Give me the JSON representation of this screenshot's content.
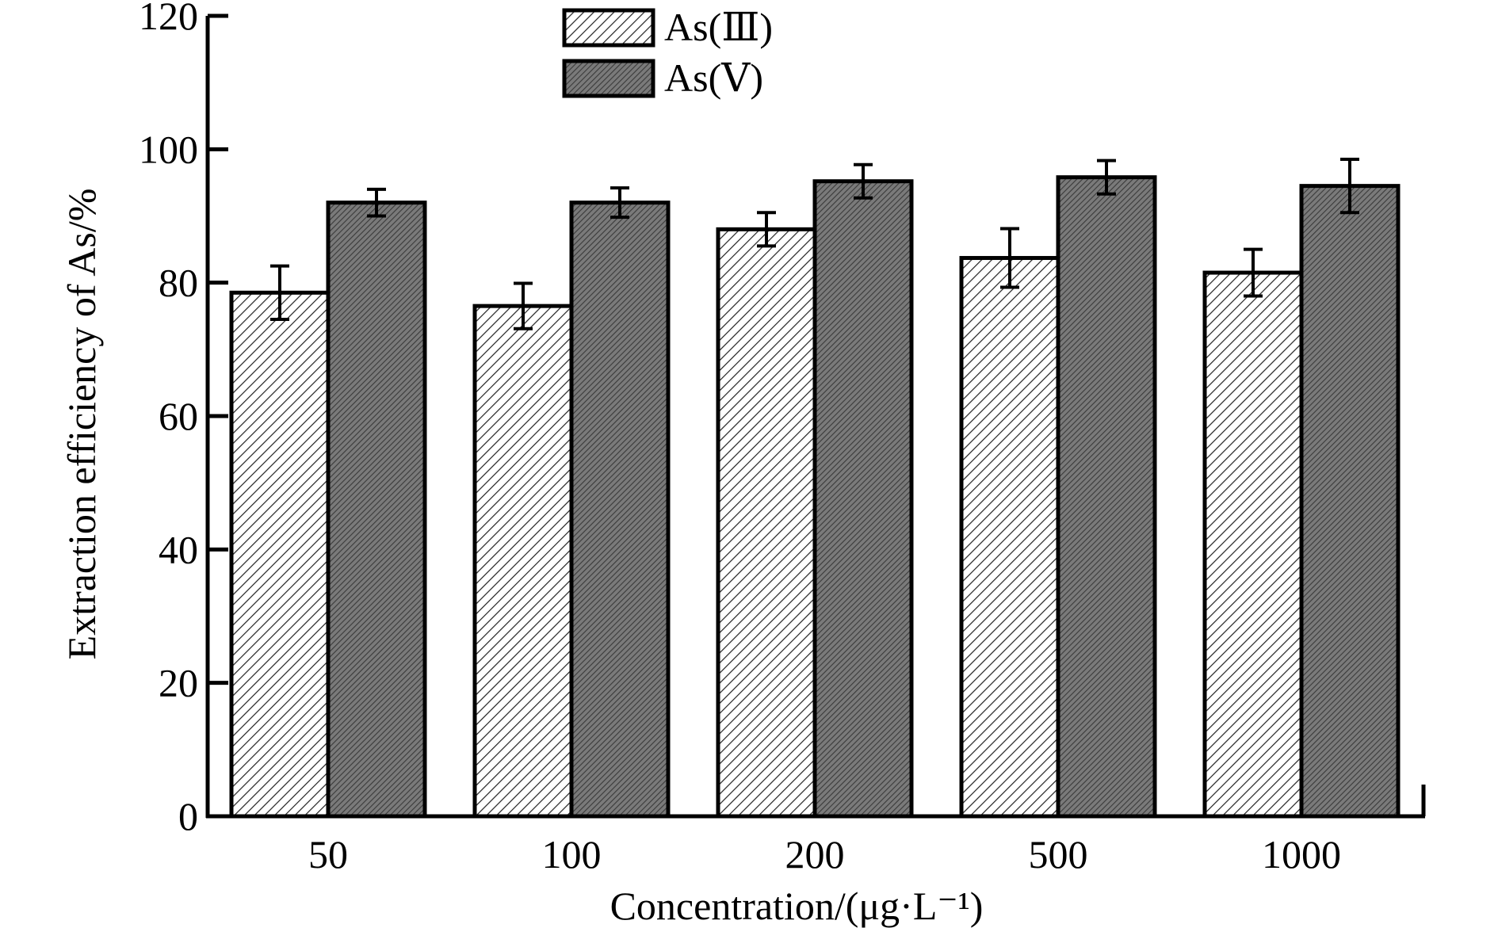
{
  "chart_data": {
    "type": "bar",
    "categories": [
      "50",
      "100",
      "200",
      "500",
      "1000"
    ],
    "series": [
      {
        "name": "As(Ⅲ)",
        "values": [
          78.5,
          76.5,
          88.0,
          83.7,
          81.5
        ],
        "errors": [
          4.0,
          3.4,
          2.5,
          4.4,
          3.5
        ],
        "pattern": "diagonal-hatch",
        "color": "#ffffff"
      },
      {
        "name": "As(Ⅴ)",
        "values": [
          92.0,
          92.0,
          95.2,
          95.8,
          94.5
        ],
        "errors": [
          2.0,
          2.2,
          2.5,
          2.5,
          4.0
        ],
        "pattern": "dense-hatch",
        "color": "#6e6e6e"
      }
    ],
    "xlabel": "Concentration/(μg·L⁻¹)",
    "ylabel": "Extraction efficiency of As/%",
    "ylim": [
      0,
      120
    ],
    "yticks": [
      0,
      20,
      40,
      60,
      80,
      100,
      120
    ],
    "grid": false,
    "legend_position": "top-center"
  }
}
